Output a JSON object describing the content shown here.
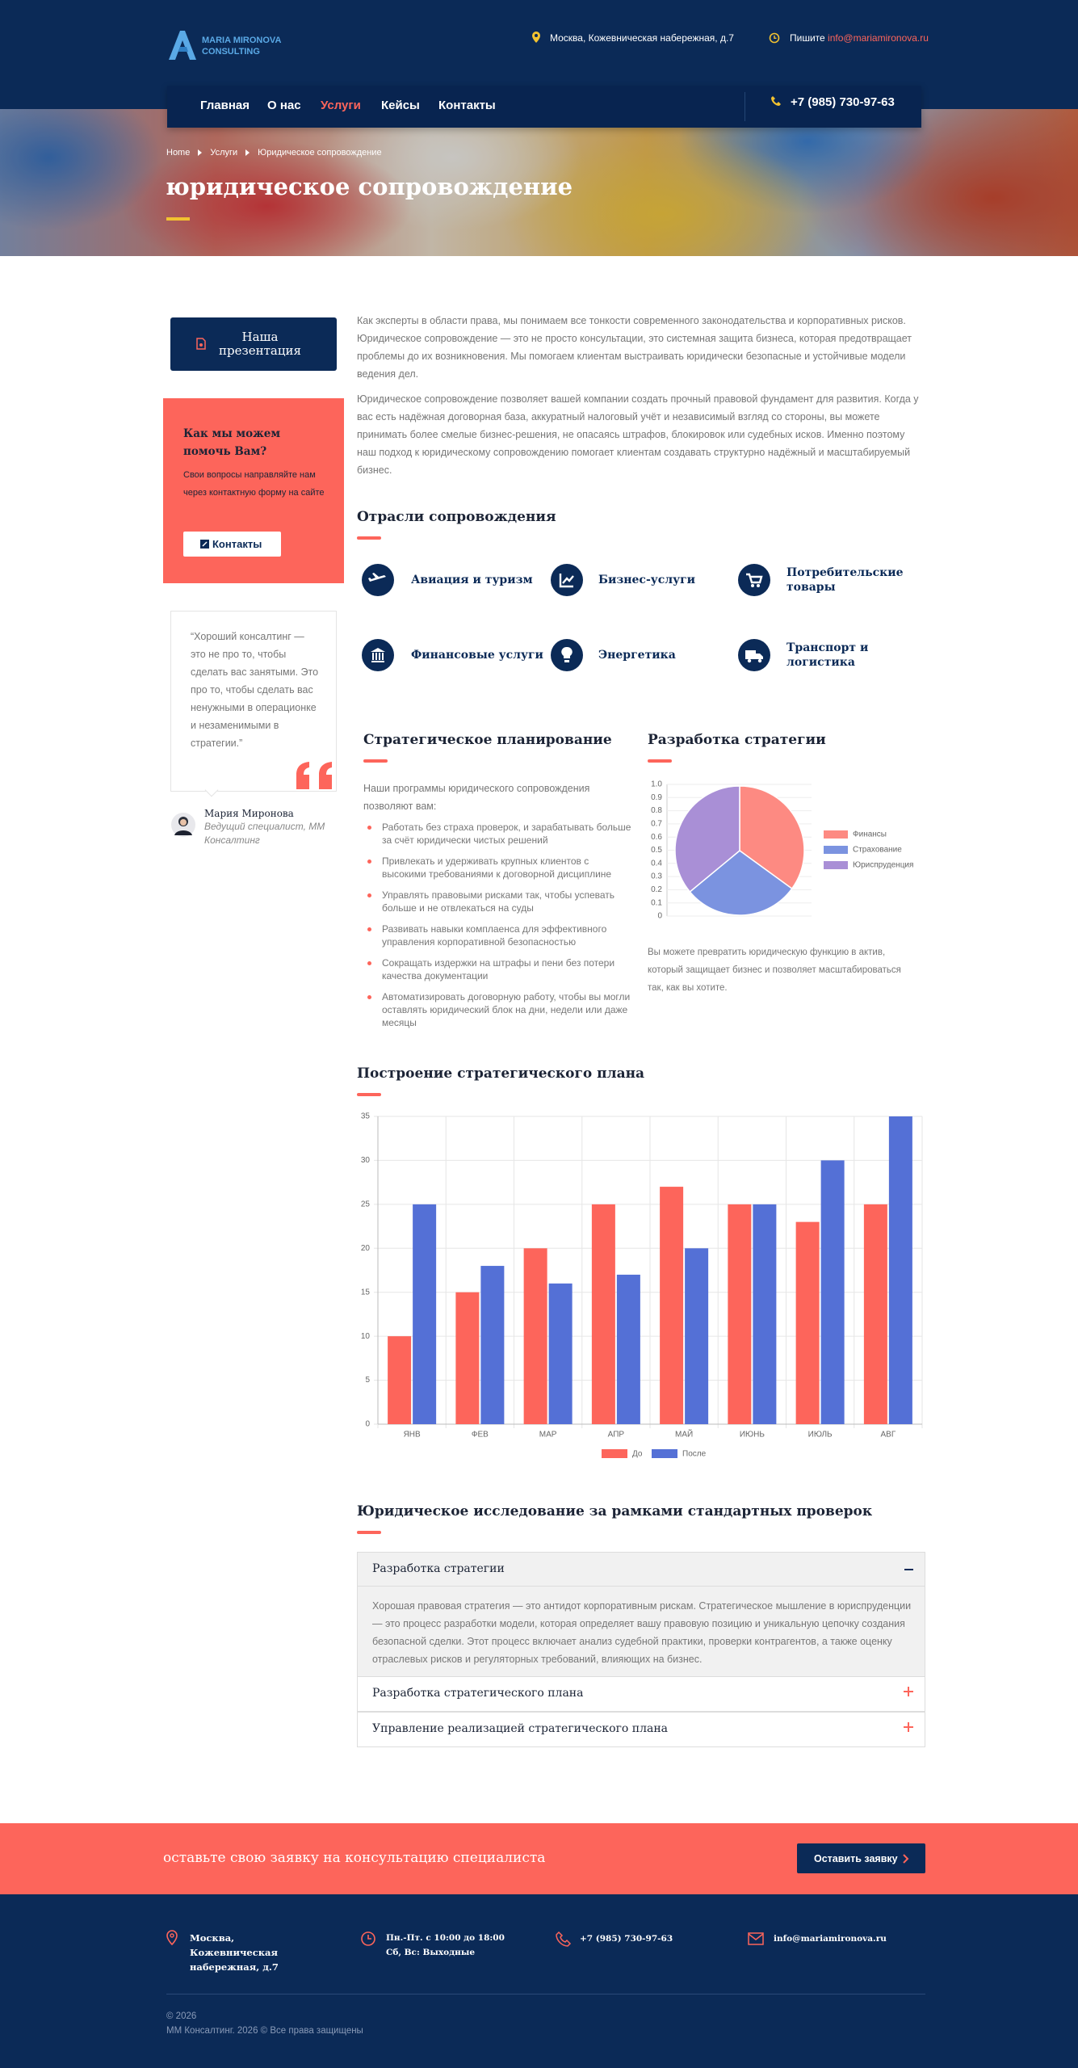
{
  "header": {
    "logo": [
      "MARIA MIRONOVA",
      "CONSULTING"
    ],
    "address": "Москва, Кожевническая набережная, д.7",
    "write_label": "Пишите",
    "email": "info@mariamironova.ru",
    "nav": [
      "Главная",
      "О нас",
      "Услуги",
      "Кейсы",
      "Контакты"
    ],
    "phone": "+7 (985) 730-97-63"
  },
  "hero": {
    "breadcrumbs": [
      "Home",
      "Услуги",
      "Юридическое сопровождение"
    ],
    "title": "юридическое сопровождение"
  },
  "sidebar": {
    "presentation_button": "Наша презентация",
    "help": {
      "title": "Как мы можем помочь Вам?",
      "text": "Свои вопросы направляйте нам через контактную форму на сайте",
      "button": "Контакты"
    },
    "quote": {
      "text": "“Хороший консалтинг — это не про то, чтобы сделать вас занятыми. Это про то, чтобы сделать вас ненужными в операционке и незаменимыми в стратегии.”",
      "name": "Мария Миронова",
      "role": "Ведущий специалист, ММ Консалтинг"
    }
  },
  "content": {
    "paragraphs": [
      "Как эксперты в области права, мы понимаем все тонкости современного законодательства и корпоративных рисков. Юридическое сопровождение — это не просто консультации, это системная защита бизнеса, которая предотвращает проблемы до их возникновения. Мы помогаем клиентам выстраивать юридически безопасные и устойчивые модели ведения дел.",
      "Юридическое сопровождение позволяет вашей компании создать прочный правовой фундамент для развития. Когда у вас есть надёжная договорная база, аккуратный налоговый учёт и независимый взгляд со стороны, вы можете принимать более смелые бизнес-решения, не опасаясь штрафов, блокировок или судебных исков. Именно поэтому наш подход к юридическому сопровождению помогает клиентам создавать структурно надёжный и масштабируемый бизнес."
    ],
    "industries": {
      "title": "Отрасли сопровождения",
      "items": [
        "Авиация и туризм",
        "Бизнес-услуги",
        "Потребительские товары",
        "Финансовые услуги",
        "Энергетика",
        "Транспорт и логистика"
      ]
    },
    "planning": {
      "title": "Стратегическое планирование",
      "intro": "Наши программы юридического сопровождения позволяют вам:",
      "items": [
        "Работать без страха проверок, и зарабатывать больше за счёт юридически чистых решений",
        "Привлекать и удерживать крупных клиентов с высокими требованиями к договорной дисциплине",
        "Управлять правовыми рисками так, чтобы успевать больше и не отвлекаться на суды",
        "Развивать навыки комплаенса для эффективного управления корпоративной безопасностью",
        "Сокращать издержки на штрафы и пени без потери качества документации",
        "Автоматизировать договорную работу, чтобы вы могли оставлять юридический блок на дни, недели или даже месяцы"
      ]
    },
    "strategy": {
      "title": "Разработка стратегии",
      "text": "Вы можете превратить юридическую функцию в актив, который защищает бизнес и позволяет масштабироваться так, как вы хотите."
    },
    "plan_title": "Построение стратегического плана",
    "research": {
      "title": "Юридическое исследование за рамками стандартных проверок",
      "items": [
        {
          "title": "Разработка стратегии",
          "text": "Хорошая правовая стратегия — это антидот корпоративным рискам. Стратегическое мышление в юриспруденции — это процесс разработки модели, которая определяет вашу правовую позицию и уникальную цепочку создания безопасной сделки. Этот процесс включает анализ судебной практики, проверки контрагентов, а также оценку отраслевых рисков и регуляторных требований, влияющих на бизнес."
        },
        {
          "title": "Разработка стратегического плана"
        },
        {
          "title": "Управление реализацией стратегического плана"
        }
      ]
    }
  },
  "cta": {
    "text": "оставьте свою заявку на консультацию специалиста",
    "button": "Оставить заявку"
  },
  "footer": {
    "address": "Москва, Кожевническая набережная, д.7",
    "hours": [
      "Пн.-Пт. с 10:00 до 18:00",
      "Сб, Вс: Выходные"
    ],
    "phone": "+7 (985) 730-97-63",
    "email": "info@mariamironova.ru",
    "copyright": [
      "© 2026",
      "ММ Консалтинг. 2026 © Все права защищены"
    ]
  },
  "chart_data": [
    {
      "type": "pie",
      "categories": [
        "Финансы",
        "Страхование",
        "Юриспруденция"
      ],
      "values": [
        35,
        29,
        36
      ],
      "colors": [
        "#fd8a82",
        "#7b93e0",
        "#a98fd6"
      ],
      "ylim": [
        0,
        1
      ],
      "yticks": [
        0,
        0.1,
        0.2,
        0.3,
        0.4,
        0.5,
        0.6,
        0.7,
        0.8,
        0.9,
        {
          "value": 1,
          "label": "1.0"
        }
      ],
      "grid": true
    },
    {
      "type": "bar",
      "categories": [
        "ЯНВ",
        "ФЕВ",
        "МАР",
        "АПР",
        "МАЙ",
        "ИЮНЬ",
        "ИЮЛЬ",
        "АВГ"
      ],
      "series": [
        {
          "name": "До",
          "color": "#fd655b",
          "values": [
            10,
            15,
            20,
            25,
            27,
            25,
            23,
            25
          ]
        },
        {
          "name": "После",
          "color": "#5470d6",
          "values": [
            25,
            18,
            16,
            17,
            20,
            25,
            30,
            35
          ]
        }
      ],
      "ylim": [
        0,
        35
      ],
      "yticks": [
        0,
        5,
        10,
        15,
        20,
        25,
        30,
        35
      ],
      "grid": true
    }
  ]
}
